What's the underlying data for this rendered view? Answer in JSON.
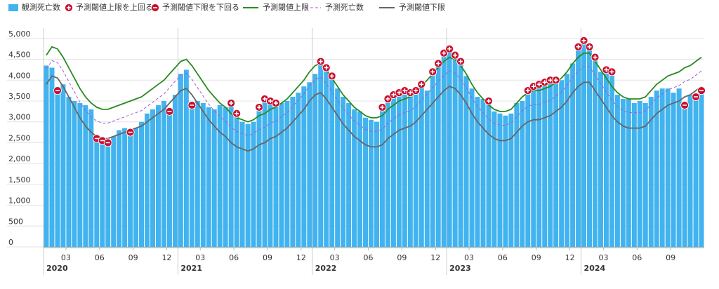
{
  "chart_data": {
    "type": "bar-line",
    "series": [
      {
        "name": "観測死亡数",
        "kind": "bar",
        "color": "#41b3ef",
        "values": [
          4350,
          4300,
          3750,
          3900,
          3600,
          3500,
          3450,
          3400,
          3300,
          2600,
          2550,
          2500,
          2650,
          2800,
          2850,
          2750,
          2850,
          3000,
          3200,
          3300,
          3400,
          3500,
          3250,
          3650,
          4150,
          4250,
          3400,
          3500,
          3450,
          3350,
          3300,
          3400,
          3350,
          3450,
          3200,
          3000,
          2950,
          3000,
          3350,
          3550,
          3500,
          3450,
          3450,
          3500,
          3600,
          3700,
          3850,
          3950,
          4150,
          4450,
          4300,
          4100,
          3800,
          3600,
          3450,
          3300,
          3250,
          3100,
          3050,
          3000,
          3350,
          3550,
          3650,
          3700,
          3750,
          3700,
          3750,
          3900,
          3750,
          4200,
          4400,
          4650,
          4750,
          4600,
          4450,
          4100,
          3800,
          3600,
          3550,
          3500,
          3250,
          3200,
          3150,
          3200,
          3450,
          3500,
          3750,
          3850,
          3900,
          3950,
          4000,
          4000,
          4000,
          4150,
          4400,
          4800,
          4950,
          4800,
          4550,
          4200,
          4250,
          4200,
          3650,
          3550,
          3550,
          3450,
          3500,
          3450,
          3600,
          3750,
          3800,
          3800,
          3700,
          3800,
          3400,
          3650,
          3600,
          3750
        ]
      },
      {
        "name": "予測閾値上限",
        "kind": "upper",
        "color": "#2a8a1f",
        "values": [
          4600,
          4800,
          4750,
          4550,
          4300,
          4050,
          3800,
          3600,
          3450,
          3350,
          3300,
          3300,
          3350,
          3400,
          3450,
          3500,
          3550,
          3600,
          3700,
          3800,
          3900,
          4000,
          4150,
          4300,
          4450,
          4500,
          4350,
          4150,
          3950,
          3750,
          3600,
          3450,
          3350,
          3200,
          3100,
          3050,
          3000,
          3050,
          3150,
          3200,
          3300,
          3350,
          3450,
          3550,
          3700,
          3850,
          4000,
          4200,
          4350,
          4400,
          4250,
          4050,
          3850,
          3650,
          3500,
          3350,
          3250,
          3150,
          3100,
          3100,
          3150,
          3300,
          3400,
          3500,
          3550,
          3600,
          3700,
          3850,
          4000,
          4150,
          4300,
          4450,
          4550,
          4500,
          4350,
          4150,
          3900,
          3700,
          3550,
          3400,
          3300,
          3250,
          3250,
          3300,
          3450,
          3600,
          3700,
          3750,
          3750,
          3800,
          3850,
          3950,
          4050,
          4200,
          4400,
          4550,
          4650,
          4650,
          4450,
          4250,
          4050,
          3850,
          3700,
          3600,
          3550,
          3550,
          3550,
          3600,
          3750,
          3900,
          4000,
          4100,
          4150,
          4200,
          4300,
          4350,
          4450,
          4550
        ]
      },
      {
        "name": "予測死亡数",
        "kind": "dashed",
        "color": "#a35cd6",
        "values": [
          4270,
          4470,
          4420,
          4220,
          3970,
          3720,
          3470,
          3270,
          3120,
          3020,
          2970,
          2970,
          3020,
          3070,
          3120,
          3170,
          3220,
          3270,
          3370,
          3470,
          3570,
          3670,
          3820,
          3970,
          4120,
          4170,
          4020,
          3820,
          3620,
          3420,
          3270,
          3120,
          3020,
          2870,
          2770,
          2720,
          2670,
          2720,
          2820,
          2870,
          2970,
          3020,
          3120,
          3220,
          3370,
          3520,
          3670,
          3870,
          4020,
          4070,
          3920,
          3720,
          3520,
          3320,
          3170,
          3020,
          2920,
          2820,
          2770,
          2770,
          2820,
          2970,
          3070,
          3170,
          3220,
          3270,
          3370,
          3520,
          3670,
          3820,
          3970,
          4120,
          4220,
          4170,
          4020,
          3820,
          3570,
          3370,
          3220,
          3070,
          2970,
          2920,
          2920,
          2970,
          3120,
          3270,
          3370,
          3420,
          3420,
          3470,
          3520,
          3620,
          3720,
          3870,
          4070,
          4220,
          4320,
          4320,
          4120,
          3920,
          3720,
          3520,
          3370,
          3270,
          3220,
          3220,
          3220,
          3270,
          3420,
          3570,
          3670,
          3770,
          3820,
          3870,
          3970,
          4020,
          4120,
          4220
        ]
      },
      {
        "name": "予測閾値下限",
        "kind": "lower",
        "color": "#666666",
        "values": [
          3900,
          4100,
          4050,
          3850,
          3600,
          3350,
          3100,
          2900,
          2750,
          2650,
          2600,
          2600,
          2650,
          2700,
          2750,
          2800,
          2850,
          2900,
          3000,
          3100,
          3200,
          3300,
          3450,
          3600,
          3750,
          3800,
          3650,
          3450,
          3250,
          3050,
          2900,
          2750,
          2650,
          2500,
          2400,
          2350,
          2300,
          2350,
          2450,
          2500,
          2600,
          2650,
          2750,
          2850,
          3000,
          3150,
          3300,
          3500,
          3650,
          3700,
          3550,
          3350,
          3150,
          2950,
          2800,
          2650,
          2550,
          2450,
          2400,
          2400,
          2450,
          2600,
          2700,
          2800,
          2850,
          2900,
          3000,
          3150,
          3300,
          3450,
          3600,
          3750,
          3850,
          3800,
          3650,
          3450,
          3200,
          3000,
          2850,
          2700,
          2600,
          2550,
          2550,
          2600,
          2750,
          2900,
          3000,
          3050,
          3050,
          3100,
          3150,
          3250,
          3350,
          3500,
          3700,
          3850,
          3950,
          3950,
          3750,
          3550,
          3350,
          3150,
          3000,
          2900,
          2850,
          2850,
          2850,
          2900,
          3050,
          3200,
          3300,
          3400,
          3450,
          3500,
          3600,
          3650,
          3750,
          3850
        ]
      }
    ],
    "markers": {
      "above": {
        "name": "予測閾値上限を上回る",
        "color": "#c8102e"
      },
      "below": {
        "name": "予測閾値下限を下回る",
        "color": "#c8102e"
      }
    },
    "categories": [
      null,
      null,
      null,
      null,
      "03",
      null,
      null,
      null,
      null,
      null,
      "06",
      null,
      null,
      null,
      null,
      null,
      "09",
      null,
      null,
      null,
      null,
      null,
      "12",
      null,
      null,
      null,
      null,
      null,
      "03",
      null,
      null,
      null,
      null,
      null,
      "06",
      null,
      null,
      null,
      null,
      null,
      "09",
      null,
      null,
      null,
      null,
      null,
      "12",
      null,
      null,
      null,
      null,
      null,
      "03",
      null,
      null,
      null,
      null,
      null,
      "06",
      null,
      null,
      null,
      null,
      null,
      "09",
      null,
      null,
      null,
      null,
      null,
      "12",
      null,
      null,
      null,
      null,
      null,
      "03",
      null,
      null,
      null,
      null,
      null,
      "06",
      null,
      null,
      null,
      null,
      null,
      "09",
      null,
      null,
      null,
      null,
      null,
      "12",
      null,
      null,
      null,
      null,
      null,
      "03",
      null,
      null,
      null,
      null,
      null,
      "06",
      null,
      null,
      null,
      null,
      null,
      "09",
      null,
      null,
      null,
      null,
      null
    ],
    "years": [
      "2020",
      "2021",
      "2022",
      "2023",
      "2024"
    ],
    "ylim": [
      0,
      5250
    ],
    "yticks": [
      0,
      500,
      {
        "value": 1000,
        "label": "1,000"
      },
      {
        "value": 1500,
        "label": "1,500"
      },
      {
        "value": 2000,
        "label": "2,000"
      },
      {
        "value": 2500,
        "label": "2,500"
      },
      {
        "value": 3000,
        "label": "3,000"
      },
      {
        "value": 3500,
        "label": "3,500"
      },
      {
        "value": 4000,
        "label": "4,000"
      },
      {
        "value": 4500,
        "label": "4,500"
      },
      {
        "value": 5000,
        "label": "5,000"
      }
    ],
    "grid": true
  }
}
